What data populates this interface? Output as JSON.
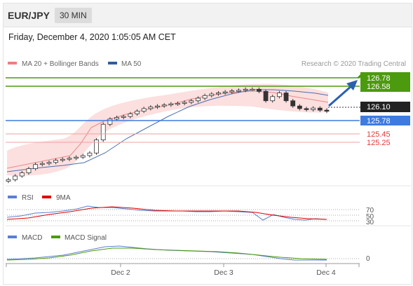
{
  "header": {
    "symbol": "EUR/JPY",
    "timeframe": "30 MIN"
  },
  "datetime": "Friday, December 4, 2020 1:05:05 AM CET",
  "legend": {
    "ma20_bb": "MA 20 + Bollinger Bands",
    "ma50": "MA 50",
    "credit": "Research © 2020 Trading Central"
  },
  "colors": {
    "resistance": "#4c9a0e",
    "support": "#3d7be0",
    "bollinger": "#f8d3d3",
    "ma20": "#e88a8a",
    "ma50": "#4a6fb0",
    "pivot_red": "#e06060",
    "arrow": "#2a60b0",
    "current": "#222222"
  },
  "price_levels": {
    "r2": "126.78",
    "r1": "126.58",
    "current": "126.10",
    "pivot": "125.78",
    "s1": "125.45",
    "s2": "125.25"
  },
  "rsi_panel": {
    "rsi_label": "RSI",
    "ma9_label": "9MA",
    "ticks": [
      "70",
      "50",
      "30"
    ]
  },
  "macd_panel": {
    "macd_label": "MACD",
    "signal_label": "MACD Signal",
    "zero_tick": "0"
  },
  "x_axis": {
    "labels": [
      "Dec 2",
      "Dec 3",
      "Dec 4"
    ]
  },
  "chart_data": {
    "type": "line",
    "title": "EUR/JPY",
    "ylim": [
      124.74,
      126.86
    ],
    "closes": [
      124.79,
      124.86,
      124.92,
      125.0,
      125.08,
      125.1,
      125.12,
      125.16,
      125.18,
      125.2,
      125.22,
      125.25,
      125.3,
      125.55,
      125.85,
      125.95,
      125.98,
      126.0,
      126.05,
      126.1,
      126.15,
      126.18,
      126.2,
      126.22,
      126.24,
      126.25,
      126.27,
      126.3,
      126.35,
      126.4,
      126.43,
      126.45,
      126.47,
      126.49,
      126.5,
      126.52,
      126.52,
      126.48,
      126.3,
      126.38,
      126.45,
      126.3,
      126.2,
      126.15,
      126.13,
      126.16,
      126.12,
      126.1
    ],
    "r2": 126.78,
    "r1": 126.58,
    "pivot": 125.78,
    "s1": 125.45,
    "s2": 125.25,
    "last": 126.1,
    "target": 126.78
  }
}
